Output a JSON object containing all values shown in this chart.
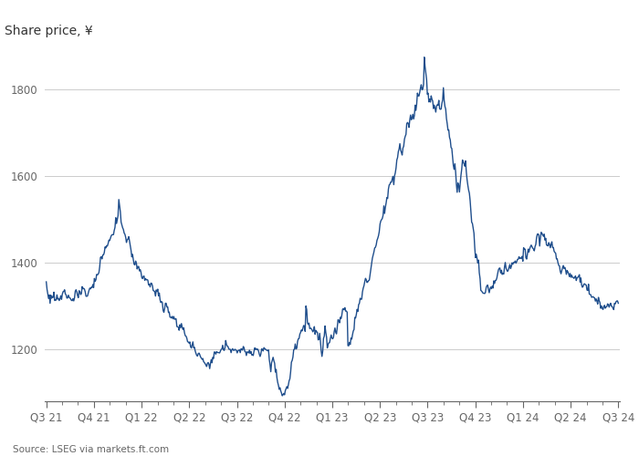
{
  "title": "Share price, ¥",
  "source": "Source: LSEG via markets.ft.com",
  "line_color": "#1f4e8c",
  "background_color": "#ffffff",
  "text_color": "#333333",
  "label_color": "#666666",
  "grid_color": "#cccccc",
  "ylim": [
    1080,
    1880
  ],
  "yticks": [
    1200,
    1400,
    1600,
    1800
  ],
  "x_labels": [
    "Q3 21",
    "Q4 21",
    "Q1 22",
    "Q2 22",
    "Q3 22",
    "Q4 22",
    "Q1 23",
    "Q2 23",
    "Q3 23",
    "Q4 23",
    "Q1 24",
    "Q2 24",
    "Q3 24"
  ],
  "line_width": 1.0,
  "title_fontsize": 10,
  "tick_fontsize": 8.5
}
